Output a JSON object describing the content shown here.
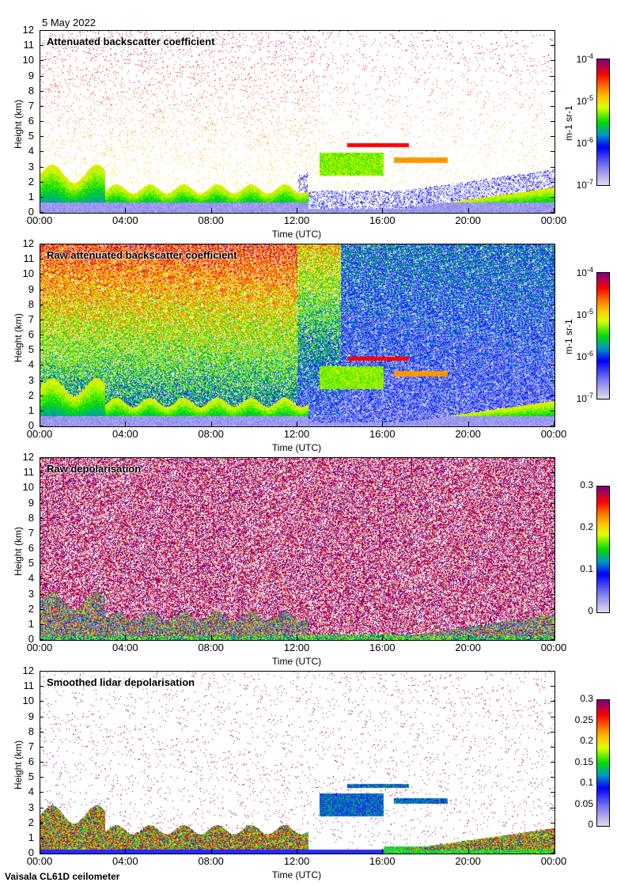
{
  "header": {
    "date": "5 May 2022"
  },
  "footer": {
    "instrument": "Vaisala CL61D ceilometer"
  },
  "chart_data": [
    {
      "type": "heatmap",
      "title": "Attenuated backscatter coefficient",
      "xlabel": "Time (UTC)",
      "ylabel": "Height (km)",
      "xticks": [
        "00:00",
        "04:00",
        "08:00",
        "12:00",
        "16:00",
        "20:00",
        "00:00"
      ],
      "yticks": [
        "0",
        "1",
        "2",
        "3",
        "4",
        "5",
        "6",
        "7",
        "8",
        "9",
        "10",
        "11",
        "12"
      ],
      "ylim": [
        0,
        12
      ],
      "xlim_hours": [
        0,
        24
      ],
      "colorbar": {
        "label": "m-1 sr-1",
        "scale": "log",
        "range": [
          1e-07,
          0.0001
        ],
        "ticks": [
          "10-7",
          "10-6",
          "10-5",
          "10-4"
        ]
      }
    },
    {
      "type": "heatmap",
      "title": "Raw attenuated backscatter coefficient",
      "xlabel": "Time (UTC)",
      "ylabel": "Height (km)",
      "xticks": [
        "00:00",
        "04:00",
        "08:00",
        "12:00",
        "16:00",
        "20:00",
        "00:00"
      ],
      "yticks": [
        "0",
        "1",
        "2",
        "3",
        "4",
        "5",
        "6",
        "7",
        "8",
        "9",
        "10",
        "11",
        "12"
      ],
      "ylim": [
        0,
        12
      ],
      "xlim_hours": [
        0,
        24
      ],
      "colorbar": {
        "label": "m-1 sr-1",
        "scale": "log",
        "range": [
          1e-07,
          0.0001
        ],
        "ticks": [
          "10-7",
          "10-6",
          "10-5",
          "10-4"
        ]
      }
    },
    {
      "type": "heatmap",
      "title": "Raw depolarisation",
      "xlabel": "Time (UTC)",
      "ylabel": "Height (km)",
      "xticks": [
        "00:00",
        "04:00",
        "08:00",
        "12:00",
        "16:00",
        "20:00",
        "00:00"
      ],
      "yticks": [
        "0",
        "1",
        "2",
        "3",
        "4",
        "5",
        "6",
        "7",
        "8",
        "9",
        "10",
        "11",
        "12"
      ],
      "ylim": [
        0,
        12
      ],
      "xlim_hours": [
        0,
        24
      ],
      "colorbar": {
        "label": "",
        "scale": "linear",
        "range": [
          0,
          0.3
        ],
        "ticks": [
          "0",
          "0.1",
          "0.2",
          "0.3"
        ]
      }
    },
    {
      "type": "heatmap",
      "title": "Smoothed lidar depolarisation",
      "xlabel": "Time (UTC)",
      "ylabel": "Height (km)",
      "xticks": [
        "00:00",
        "04:00",
        "08:00",
        "12:00",
        "16:00",
        "20:00",
        "00:00"
      ],
      "yticks": [
        "0",
        "1",
        "2",
        "3",
        "4",
        "5",
        "6",
        "7",
        "8",
        "9",
        "10",
        "11",
        "12"
      ],
      "ylim": [
        0,
        12
      ],
      "xlim_hours": [
        0,
        24
      ],
      "colorbar": {
        "label": "",
        "scale": "linear",
        "range": [
          0,
          0.3
        ],
        "ticks": [
          "0",
          "0.05",
          "0.1",
          "0.15",
          "0.2",
          "0.25",
          "0.3"
        ]
      }
    }
  ]
}
